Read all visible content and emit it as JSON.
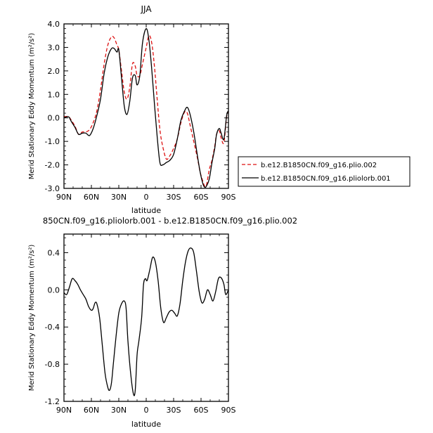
{
  "chart_data": [
    {
      "type": "line",
      "title": "JJA",
      "xlabel": "latitude",
      "ylabel": "Merid Stationary Eddy Momentum (m²/s²)",
      "xlim": [
        90,
        -90
      ],
      "ylim": [
        -3.0,
        4.0
      ],
      "x_ticks": [
        90,
        60,
        30,
        0,
        -30,
        -60,
        -90
      ],
      "x_tick_labels": [
        "90N",
        "60N",
        "30N",
        "0",
        "30S",
        "60S",
        "90S"
      ],
      "y_ticks": [
        4.0,
        3.0,
        2.0,
        1.0,
        0.0,
        -1.0,
        -2.0,
        -3.0
      ],
      "y_tick_labels": [
        "4.0",
        "3.0",
        "2.0",
        "1.0",
        "0.0",
        "-1.0",
        "-2.0",
        "-3.0"
      ],
      "legend_position": "right",
      "series": [
        {
          "name": "b.e12.B1850CN.f09_g16.plio.002",
          "color": "#dd1111",
          "style": "dashed",
          "x": [
            90,
            85,
            82,
            78,
            74,
            70,
            66,
            62,
            58,
            54,
            50,
            46,
            42,
            38,
            35,
            32,
            30,
            27,
            24,
            21,
            18,
            15,
            12,
            10,
            7,
            4,
            0,
            -3,
            -6,
            -9,
            -12,
            -15,
            -18,
            -22,
            -26,
            -30,
            -34,
            -38,
            -42,
            -45,
            -48,
            -52,
            -56,
            -59,
            -62,
            -64,
            -66,
            -69,
            -72,
            -75,
            -77,
            -80,
            -82,
            -85,
            -88,
            -90
          ],
          "values": [
            0.05,
            0.05,
            -0.1,
            -0.35,
            -0.7,
            -0.6,
            -0.6,
            -0.5,
            -0.2,
            0.3,
            1.2,
            2.3,
            3.1,
            3.45,
            3.4,
            3.1,
            2.9,
            2.0,
            1.1,
            0.8,
            1.3,
            2.3,
            2.2,
            1.8,
            1.8,
            2.3,
            3.0,
            3.5,
            3.2,
            2.2,
            0.8,
            -0.5,
            -1.2,
            -1.75,
            -1.6,
            -1.3,
            -0.9,
            -0.2,
            0.25,
            0.2,
            -0.3,
            -1.0,
            -1.7,
            -2.3,
            -2.7,
            -2.9,
            -2.85,
            -2.2,
            -1.8,
            -1.2,
            -0.7,
            -0.55,
            -0.85,
            -1.05,
            0.05,
            0.25
          ]
        },
        {
          "name": "b.e12.B1850CN.f09_g16.pliolorb.001",
          "color": "#000000",
          "style": "solid",
          "x": [
            90,
            85,
            82,
            78,
            74,
            70,
            66,
            62,
            58,
            54,
            50,
            46,
            42,
            38,
            35,
            32,
            30,
            27,
            24,
            21,
            18,
            15,
            12,
            10,
            7,
            4,
            0,
            -3,
            -6,
            -9,
            -12,
            -15,
            -18,
            -22,
            -26,
            -30,
            -34,
            -38,
            -42,
            -45,
            -48,
            -52,
            -56,
            -59,
            -62,
            -64,
            -66,
            -69,
            -72,
            -75,
            -77,
            -80,
            -82,
            -85,
            -88,
            -90
          ],
          "values": [
            0.0,
            0.05,
            -0.15,
            -0.4,
            -0.7,
            -0.65,
            -0.65,
            -0.75,
            -0.45,
            0.1,
            0.8,
            1.9,
            2.6,
            2.95,
            2.95,
            2.8,
            2.9,
            1.7,
            0.5,
            0.15,
            0.7,
            1.7,
            1.8,
            1.4,
            1.8,
            3.2,
            3.8,
            3.3,
            2.1,
            0.6,
            -0.8,
            -1.9,
            -2.0,
            -1.9,
            -1.8,
            -1.55,
            -0.9,
            -0.1,
            0.3,
            0.45,
            0.15,
            -0.6,
            -1.6,
            -2.3,
            -2.8,
            -2.95,
            -2.9,
            -2.6,
            -1.9,
            -1.3,
            -0.7,
            -0.45,
            -0.65,
            -0.9,
            0.1,
            0.3
          ]
        }
      ]
    },
    {
      "type": "line",
      "title": "850CN.f09_g16.pliolorb.001 - b.e12.B1850CN.f09_g16.plio.002",
      "xlabel": "latitude",
      "ylabel": "Merid Stationary Eddy Momentum (m²/s²)",
      "xlim": [
        90,
        -90
      ],
      "ylim": [
        -1.2,
        0.6
      ],
      "x_ticks": [
        90,
        60,
        30,
        0,
        -30,
        -60,
        -90
      ],
      "x_tick_labels": [
        "90N",
        "60N",
        "30N",
        "0",
        "30S",
        "60S",
        "90S"
      ],
      "y_ticks": [
        0.4,
        0.0,
        -0.4,
        -0.8,
        -1.2
      ],
      "y_tick_labels": [
        "0.4",
        "0.0",
        "-0.4",
        "-0.8",
        "-1.2"
      ],
      "series": [
        {
          "name": "difference",
          "color": "#000000",
          "style": "solid",
          "x": [
            90,
            87,
            84,
            81,
            78,
            75,
            72,
            69,
            66,
            63,
            60,
            58,
            56,
            54,
            51,
            48,
            45,
            42,
            40,
            38,
            36,
            33,
            30,
            27,
            24,
            22,
            20,
            17,
            14,
            12,
            10,
            8,
            5,
            3,
            1,
            -1,
            -4,
            -7,
            -10,
            -13,
            -16,
            -19,
            -22,
            -25,
            -28,
            -31,
            -34,
            -37,
            -40,
            -43,
            -46,
            -49,
            -52,
            -55,
            -58,
            -61,
            -64,
            -67,
            -70,
            -73,
            -76,
            -79,
            -82,
            -85,
            -87,
            -90
          ],
          "values": [
            -0.03,
            -0.05,
            0.03,
            0.12,
            0.1,
            0.06,
            0.0,
            -0.05,
            -0.1,
            -0.18,
            -0.22,
            -0.2,
            -0.14,
            -0.15,
            -0.3,
            -0.6,
            -0.9,
            -1.05,
            -1.08,
            -1.0,
            -0.8,
            -0.5,
            -0.25,
            -0.15,
            -0.12,
            -0.2,
            -0.55,
            -0.9,
            -1.12,
            -1.08,
            -0.7,
            -0.55,
            -0.3,
            0.05,
            0.12,
            0.1,
            0.22,
            0.35,
            0.3,
            0.1,
            -0.2,
            -0.35,
            -0.3,
            -0.24,
            -0.22,
            -0.25,
            -0.28,
            -0.15,
            0.1,
            0.3,
            0.42,
            0.45,
            0.4,
            0.2,
            -0.02,
            -0.14,
            -0.1,
            0.0,
            -0.05,
            -0.12,
            -0.02,
            0.12,
            0.13,
            0.06,
            -0.05,
            0.0
          ]
        }
      ]
    }
  ],
  "legend": {
    "entries": [
      "b.e12.B1850CN.f09_g16.plio.002",
      "b.e12.B1850CN.f09_g16.pliolorb.001"
    ]
  }
}
